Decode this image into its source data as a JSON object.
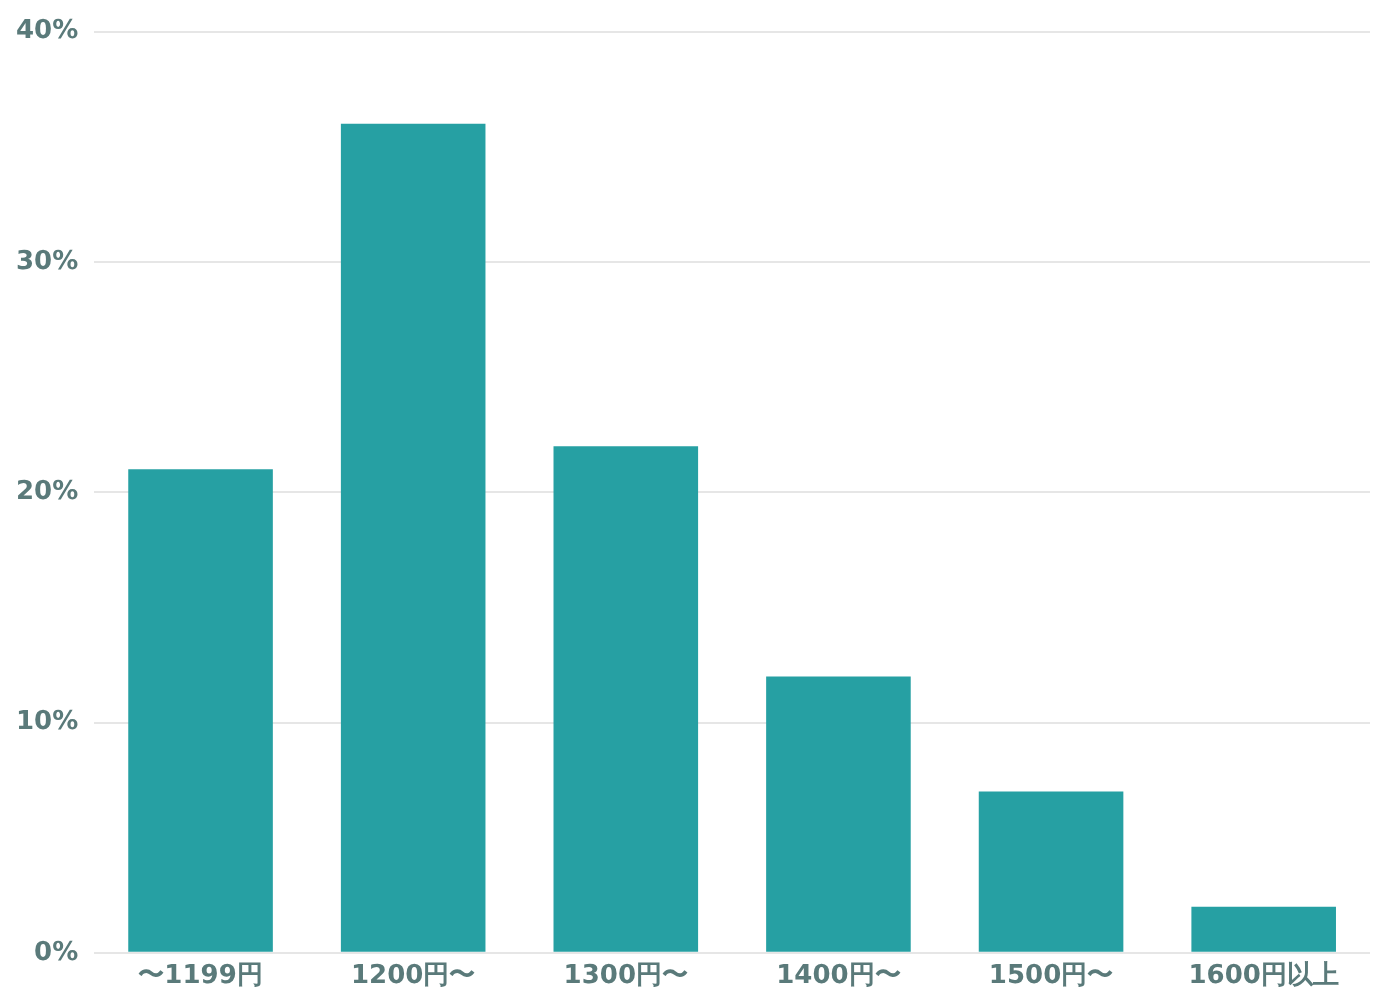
{
  "chart_data": {
    "type": "bar",
    "categories": [
      "〜1199円",
      "1200円〜",
      "1300円〜",
      "1400円〜",
      "1500円〜",
      "1600円以上"
    ],
    "values": [
      21,
      36,
      22,
      12,
      7,
      2
    ],
    "color": "#26a0a3",
    "ylim": [
      0,
      40
    ],
    "yticks": [
      {
        "value": 0,
        "label": "0%"
      },
      {
        "value": 10,
        "label": "10%"
      },
      {
        "value": 20,
        "label": "20%"
      },
      {
        "value": 30,
        "label": "30%"
      },
      {
        "value": 40,
        "label": "40%"
      }
    ],
    "grid": "y",
    "legend": false
  }
}
